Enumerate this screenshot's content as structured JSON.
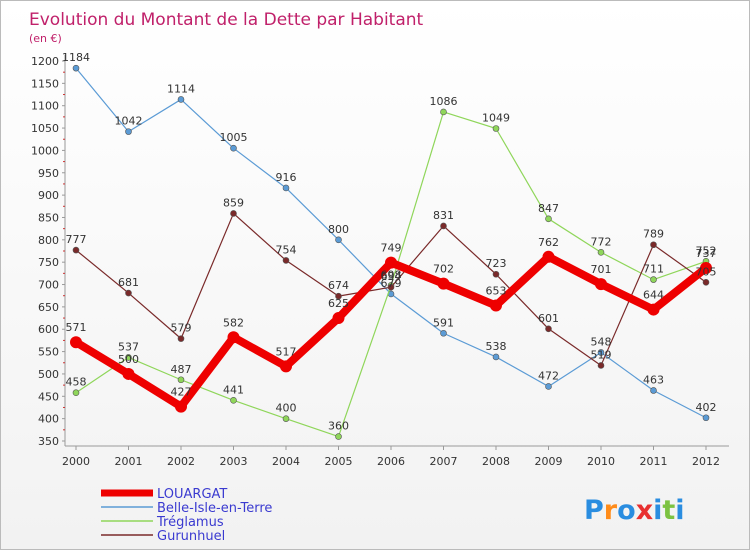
{
  "chart_data": {
    "type": "line",
    "title": "Evolution du Montant de la Dette par Habitant",
    "unit_label": "(en €)",
    "x": [
      "2000",
      "2001",
      "2002",
      "2003",
      "2004",
      "2005",
      "2006",
      "2007",
      "2008",
      "2009",
      "2010",
      "2011",
      "2012"
    ],
    "y_ticks": [
      "350",
      "400",
      "450",
      "500",
      "550",
      "600",
      "650",
      "700",
      "750",
      "800",
      "850",
      "900",
      "950",
      "1000",
      "1050",
      "1100",
      "1150",
      "1200"
    ],
    "ylim": [
      350,
      1200
    ],
    "grid": false,
    "legend_position": "bottom-left",
    "series": [
      {
        "name": "LOUARGAT",
        "color": "#ee0000",
        "values": [
          571,
          500,
          427,
          582,
          517,
          625,
          749,
          702,
          653,
          762,
          701,
          644,
          737
        ],
        "labels": [
          "571",
          "500",
          "427",
          "582",
          "517",
          "625",
          "749",
          "702",
          "653",
          "762",
          "701",
          "644",
          "737"
        ]
      },
      {
        "name": "Belle-Isle-en-Terre",
        "color": "#5b9bd5",
        "values": [
          1184,
          1042,
          1114,
          1005,
          916,
          800,
          679,
          591,
          538,
          472,
          548,
          463,
          402
        ],
        "labels": [
          "1184",
          "1042",
          "1114",
          "1005",
          "916",
          "800",
          "679",
          "591",
          "538",
          "472",
          "548",
          "463",
          "402"
        ]
      },
      {
        "name": "Tréglamus",
        "color": "#8fd65a",
        "values": [
          458,
          537,
          487,
          441,
          400,
          360,
          698,
          1086,
          1049,
          847,
          772,
          711,
          752
        ],
        "labels": [
          "458",
          "537",
          "487",
          "441",
          "400",
          "360",
          "698",
          "1086",
          "1049",
          "847",
          "772",
          "711",
          "752"
        ]
      },
      {
        "name": "Gurunhuel",
        "color": "#7a2a2a",
        "values": [
          777,
          681,
          579,
          859,
          754,
          674,
          694,
          831,
          723,
          601,
          519,
          789,
          705
        ],
        "labels": [
          "777",
          "681",
          "579",
          "859",
          "754",
          "674",
          "694",
          "831",
          "723",
          "601",
          "519",
          "789",
          "705"
        ]
      }
    ]
  },
  "brand": {
    "letters": [
      "P",
      "r",
      "o",
      "x",
      "i",
      "t",
      "i"
    ],
    "colors": [
      "#2a8de0",
      "#ff8c1a",
      "#2a8de0",
      "#e83030",
      "#2a8de0",
      "#7cc242",
      "#2a8de0"
    ]
  }
}
